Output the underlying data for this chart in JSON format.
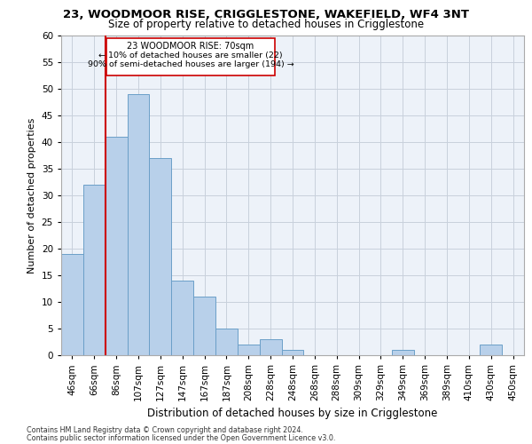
{
  "title_line1": "23, WOODMOOR RISE, CRIGGLESTONE, WAKEFIELD, WF4 3NT",
  "title_line2": "Size of property relative to detached houses in Crigglestone",
  "xlabel": "Distribution of detached houses by size in Crigglestone",
  "ylabel": "Number of detached properties",
  "bin_labels": [
    "46sqm",
    "66sqm",
    "86sqm",
    "107sqm",
    "127sqm",
    "147sqm",
    "167sqm",
    "187sqm",
    "208sqm",
    "228sqm",
    "248sqm",
    "268sqm",
    "288sqm",
    "309sqm",
    "329sqm",
    "349sqm",
    "369sqm",
    "389sqm",
    "410sqm",
    "430sqm",
    "450sqm"
  ],
  "bar_values": [
    19,
    32,
    41,
    49,
    37,
    14,
    11,
    5,
    2,
    3,
    1,
    0,
    0,
    0,
    0,
    1,
    0,
    0,
    0,
    2,
    0
  ],
  "bar_color": "#b8d0ea",
  "bar_edge_color": "#6b9fc8",
  "property_line_x": 1.5,
  "annotation_box_line1": "23 WOODMOOR RISE: 70sqm",
  "annotation_box_line2": "← 10% of detached houses are smaller (22)",
  "annotation_box_line3": "90% of semi-detached houses are larger (194) →",
  "vline_color": "#cc0000",
  "ylim": [
    0,
    60
  ],
  "yticks": [
    0,
    5,
    10,
    15,
    20,
    25,
    30,
    35,
    40,
    45,
    50,
    55,
    60
  ],
  "footnote1": "Contains HM Land Registry data © Crown copyright and database right 2024.",
  "footnote2": "Contains public sector information licensed under the Open Government Licence v3.0.",
  "background_color": "#edf2f9",
  "grid_color": "#c8d0dc"
}
